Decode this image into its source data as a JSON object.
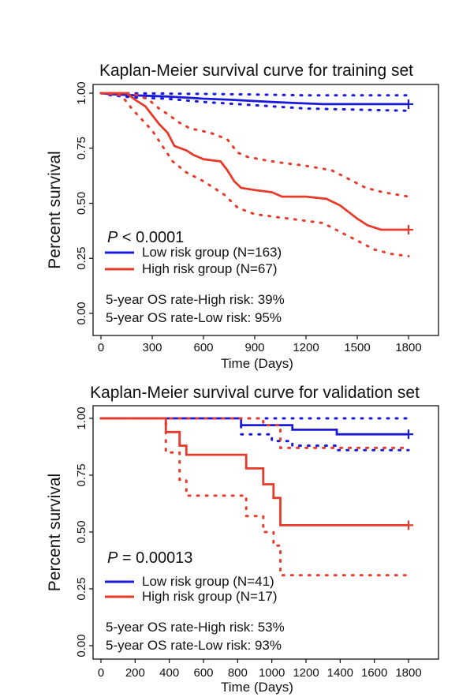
{
  "chart_data": [
    {
      "type": "line",
      "title": "Kaplan-Meier survival curve for training set",
      "xlabel": "Time (Days)",
      "ylabel": "Percent survival",
      "xlim": [
        0,
        1800
      ],
      "ylim": [
        0,
        1
      ],
      "xticks": [
        "0",
        "300",
        "600",
        "900",
        "1200",
        "1500",
        "1800"
      ],
      "yticks": [
        "0.00",
        "0.25",
        "0.50",
        "0.75",
        "1.00"
      ],
      "p_prefix": "P",
      "p_rest": " < 0.0001",
      "legend": [
        "Low risk group (N=163)",
        "High risk group (N=67)"
      ],
      "notes": [
        "5-year OS rate-High risk: 39%",
        "5-year OS rate-Low risk: 95%"
      ],
      "series": [
        {
          "name": "Low risk group (N=163)",
          "color": "#1a1adb",
          "points": [
            [
              0,
              1.0
            ],
            [
              60,
              0.995
            ],
            [
              200,
              0.99
            ],
            [
              380,
              0.985
            ],
            [
              500,
              0.98
            ],
            [
              600,
              0.975
            ],
            [
              760,
              0.97
            ],
            [
              1000,
              0.96
            ],
            [
              1150,
              0.955
            ],
            [
              1300,
              0.95
            ],
            [
              1500,
              0.95
            ],
            [
              1800,
              0.95
            ]
          ],
          "upper": [
            [
              0,
              1.0
            ],
            [
              100,
              1.0
            ],
            [
              400,
              0.998
            ],
            [
              800,
              0.995
            ],
            [
              1200,
              0.99
            ],
            [
              1500,
              0.99
            ],
            [
              1800,
              0.99
            ]
          ],
          "lower": [
            [
              0,
              1.0
            ],
            [
              60,
              0.99
            ],
            [
              200,
              0.98
            ],
            [
              380,
              0.975
            ],
            [
              600,
              0.96
            ],
            [
              800,
              0.95
            ],
            [
              1000,
              0.94
            ],
            [
              1200,
              0.93
            ],
            [
              1500,
              0.925
            ],
            [
              1800,
              0.92
            ]
          ]
        },
        {
          "name": "High risk group (N=67)",
          "color": "#e63a2a",
          "points": [
            [
              0,
              1.0
            ],
            [
              150,
              1.0
            ],
            [
              200,
              0.97
            ],
            [
              260,
              0.94
            ],
            [
              300,
              0.9
            ],
            [
              340,
              0.86
            ],
            [
              390,
              0.82
            ],
            [
              430,
              0.76
            ],
            [
              500,
              0.74
            ],
            [
              540,
              0.72
            ],
            [
              600,
              0.7
            ],
            [
              700,
              0.69
            ],
            [
              740,
              0.65
            ],
            [
              780,
              0.6
            ],
            [
              820,
              0.57
            ],
            [
              900,
              0.56
            ],
            [
              1000,
              0.55
            ],
            [
              1060,
              0.53
            ],
            [
              1200,
              0.53
            ],
            [
              1320,
              0.52
            ],
            [
              1400,
              0.49
            ],
            [
              1450,
              0.46
            ],
            [
              1500,
              0.43
            ],
            [
              1560,
              0.4
            ],
            [
              1640,
              0.38
            ],
            [
              1800,
              0.38
            ]
          ],
          "upper": [
            [
              0,
              1.0
            ],
            [
              150,
              1.0
            ],
            [
              220,
              0.99
            ],
            [
              280,
              0.97
            ],
            [
              340,
              0.93
            ],
            [
              400,
              0.9
            ],
            [
              450,
              0.87
            ],
            [
              520,
              0.84
            ],
            [
              640,
              0.82
            ],
            [
              740,
              0.79
            ],
            [
              800,
              0.73
            ],
            [
              860,
              0.71
            ],
            [
              1000,
              0.69
            ],
            [
              1200,
              0.67
            ],
            [
              1350,
              0.65
            ],
            [
              1450,
              0.61
            ],
            [
              1550,
              0.57
            ],
            [
              1650,
              0.55
            ],
            [
              1800,
              0.53
            ]
          ],
          "lower": [
            [
              0,
              1.0
            ],
            [
              120,
              0.99
            ],
            [
              180,
              0.93
            ],
            [
              240,
              0.88
            ],
            [
              300,
              0.83
            ],
            [
              360,
              0.76
            ],
            [
              420,
              0.69
            ],
            [
              500,
              0.64
            ],
            [
              600,
              0.6
            ],
            [
              720,
              0.54
            ],
            [
              800,
              0.48
            ],
            [
              900,
              0.45
            ],
            [
              1100,
              0.43
            ],
            [
              1300,
              0.41
            ],
            [
              1400,
              0.37
            ],
            [
              1500,
              0.33
            ],
            [
              1600,
              0.29
            ],
            [
              1700,
              0.27
            ],
            [
              1800,
              0.26
            ]
          ]
        }
      ]
    },
    {
      "type": "line",
      "title": "Kaplan-Meier survival curve for validation set",
      "xlabel": "Time (Days)",
      "ylabel": "Percent survival",
      "xlim": [
        0,
        1800
      ],
      "ylim": [
        0,
        1
      ],
      "xticks": [
        "0",
        "200",
        "400",
        "600",
        "800",
        "1000",
        "1200",
        "1400",
        "1600",
        "1800"
      ],
      "yticks": [
        "0.00",
        "0.25",
        "0.50",
        "0.75",
        "1.00"
      ],
      "p_prefix": "P",
      "p_rest": " = 0.00013",
      "legend": [
        "Low risk group (N=41)",
        "High risk group (N=17)"
      ],
      "notes": [
        "5-year OS rate-High risk: 53%",
        "5-year OS rate-Low risk: 93%"
      ],
      "series": [
        {
          "name": "Low risk group (N=41)",
          "color": "#1a1adb",
          "points": [
            [
              0,
              1.0
            ],
            [
              820,
              1.0
            ],
            [
              820,
              0.97
            ],
            [
              1120,
              0.97
            ],
            [
              1120,
              0.95
            ],
            [
              1380,
              0.95
            ],
            [
              1380,
              0.93
            ],
            [
              1800,
              0.93
            ]
          ],
          "upper": [
            [
              0,
              1.0
            ],
            [
              1800,
              1.0
            ]
          ],
          "lower": [
            [
              0,
              1.0
            ],
            [
              820,
              1.0
            ],
            [
              820,
              0.93
            ],
            [
              1000,
              0.93
            ],
            [
              1000,
              0.9
            ],
            [
              1120,
              0.9
            ],
            [
              1120,
              0.88
            ],
            [
              1380,
              0.88
            ],
            [
              1380,
              0.86
            ],
            [
              1800,
              0.86
            ]
          ]
        },
        {
          "name": "High risk group (N=17)",
          "color": "#e63a2a",
          "points": [
            [
              0,
              1.0
            ],
            [
              380,
              1.0
            ],
            [
              380,
              0.94
            ],
            [
              460,
              0.94
            ],
            [
              460,
              0.88
            ],
            [
              500,
              0.88
            ],
            [
              500,
              0.84
            ],
            [
              850,
              0.84
            ],
            [
              850,
              0.78
            ],
            [
              950,
              0.78
            ],
            [
              950,
              0.71
            ],
            [
              1010,
              0.71
            ],
            [
              1010,
              0.65
            ],
            [
              1050,
              0.65
            ],
            [
              1050,
              0.53
            ],
            [
              1800,
              0.53
            ]
          ],
          "upper": [
            [
              0,
              1.0
            ],
            [
              950,
              1.0
            ],
            [
              950,
              0.97
            ],
            [
              1050,
              0.97
            ],
            [
              1050,
              0.87
            ],
            [
              1800,
              0.87
            ]
          ],
          "lower": [
            [
              0,
              1.0
            ],
            [
              380,
              1.0
            ],
            [
              380,
              0.85
            ],
            [
              460,
              0.85
            ],
            [
              460,
              0.73
            ],
            [
              500,
              0.73
            ],
            [
              500,
              0.66
            ],
            [
              850,
              0.66
            ],
            [
              850,
              0.57
            ],
            [
              950,
              0.57
            ],
            [
              950,
              0.5
            ],
            [
              1010,
              0.5
            ],
            [
              1010,
              0.44
            ],
            [
              1050,
              0.44
            ],
            [
              1050,
              0.31
            ],
            [
              1800,
              0.31
            ]
          ]
        }
      ]
    }
  ]
}
